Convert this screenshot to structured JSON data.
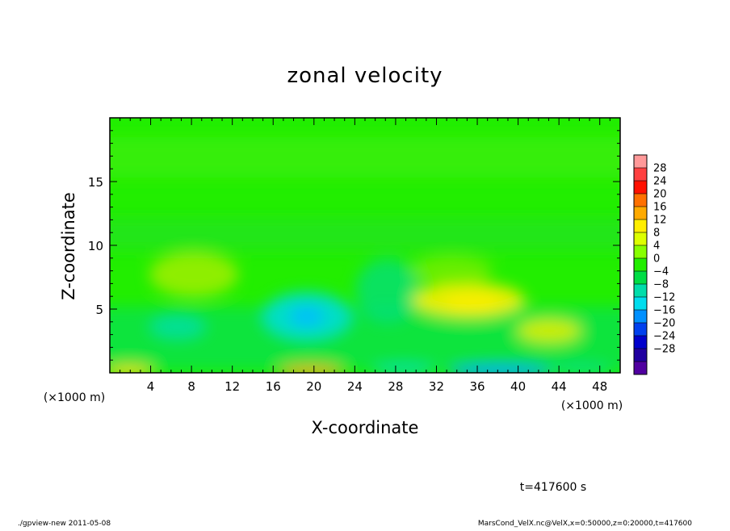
{
  "chart_data": {
    "type": "heatmap",
    "title": "zonal velocity",
    "xlabel": "X-coordinate",
    "ylabel": "Z-coordinate",
    "x_unit": "(×1000 m)",
    "x_unit_right": "(×1000 m)",
    "xlim": [
      0,
      50
    ],
    "ylim": [
      0,
      20
    ],
    "x_ticks": [
      4,
      8,
      12,
      16,
      20,
      24,
      28,
      32,
      36,
      40,
      44,
      48
    ],
    "y_ticks": [
      5,
      10,
      15
    ],
    "colorbar": {
      "labels": [
        "28",
        "24",
        "20",
        "16",
        "12",
        "8",
        "4",
        "0",
        "−4",
        "−8",
        "−12",
        "−16",
        "−20",
        "−24",
        "−28"
      ],
      "colors": [
        "#ff9999",
        "#ff4040",
        "#ff1000",
        "#ff7000",
        "#ffaa00",
        "#ffee00",
        "#ddff00",
        "#88ff00",
        "#22ee00",
        "#00dd44",
        "#00ddaa",
        "#00ddee",
        "#0090ff",
        "#0040ee",
        "#0000cc",
        "#2000a0",
        "#5000a0"
      ]
    },
    "features": [
      {
        "x": 20,
        "z": 4.5,
        "value": -12
      },
      {
        "x": 35,
        "z": 5.5,
        "value": 10
      },
      {
        "x": 43,
        "z": 3,
        "value": 8
      },
      {
        "x": 8,
        "z": 7,
        "value": 6
      },
      {
        "x": 19,
        "z": 0.3,
        "value": 14
      },
      {
        "x": 37,
        "z": 0.3,
        "value": -14
      }
    ],
    "time_label": "t=417600 s",
    "footer_left": "./gpview-new  2011-05-08",
    "footer_right": "MarsCond_VelX.nc@VelX,x=0:50000,z=0:20000,t=417600"
  }
}
